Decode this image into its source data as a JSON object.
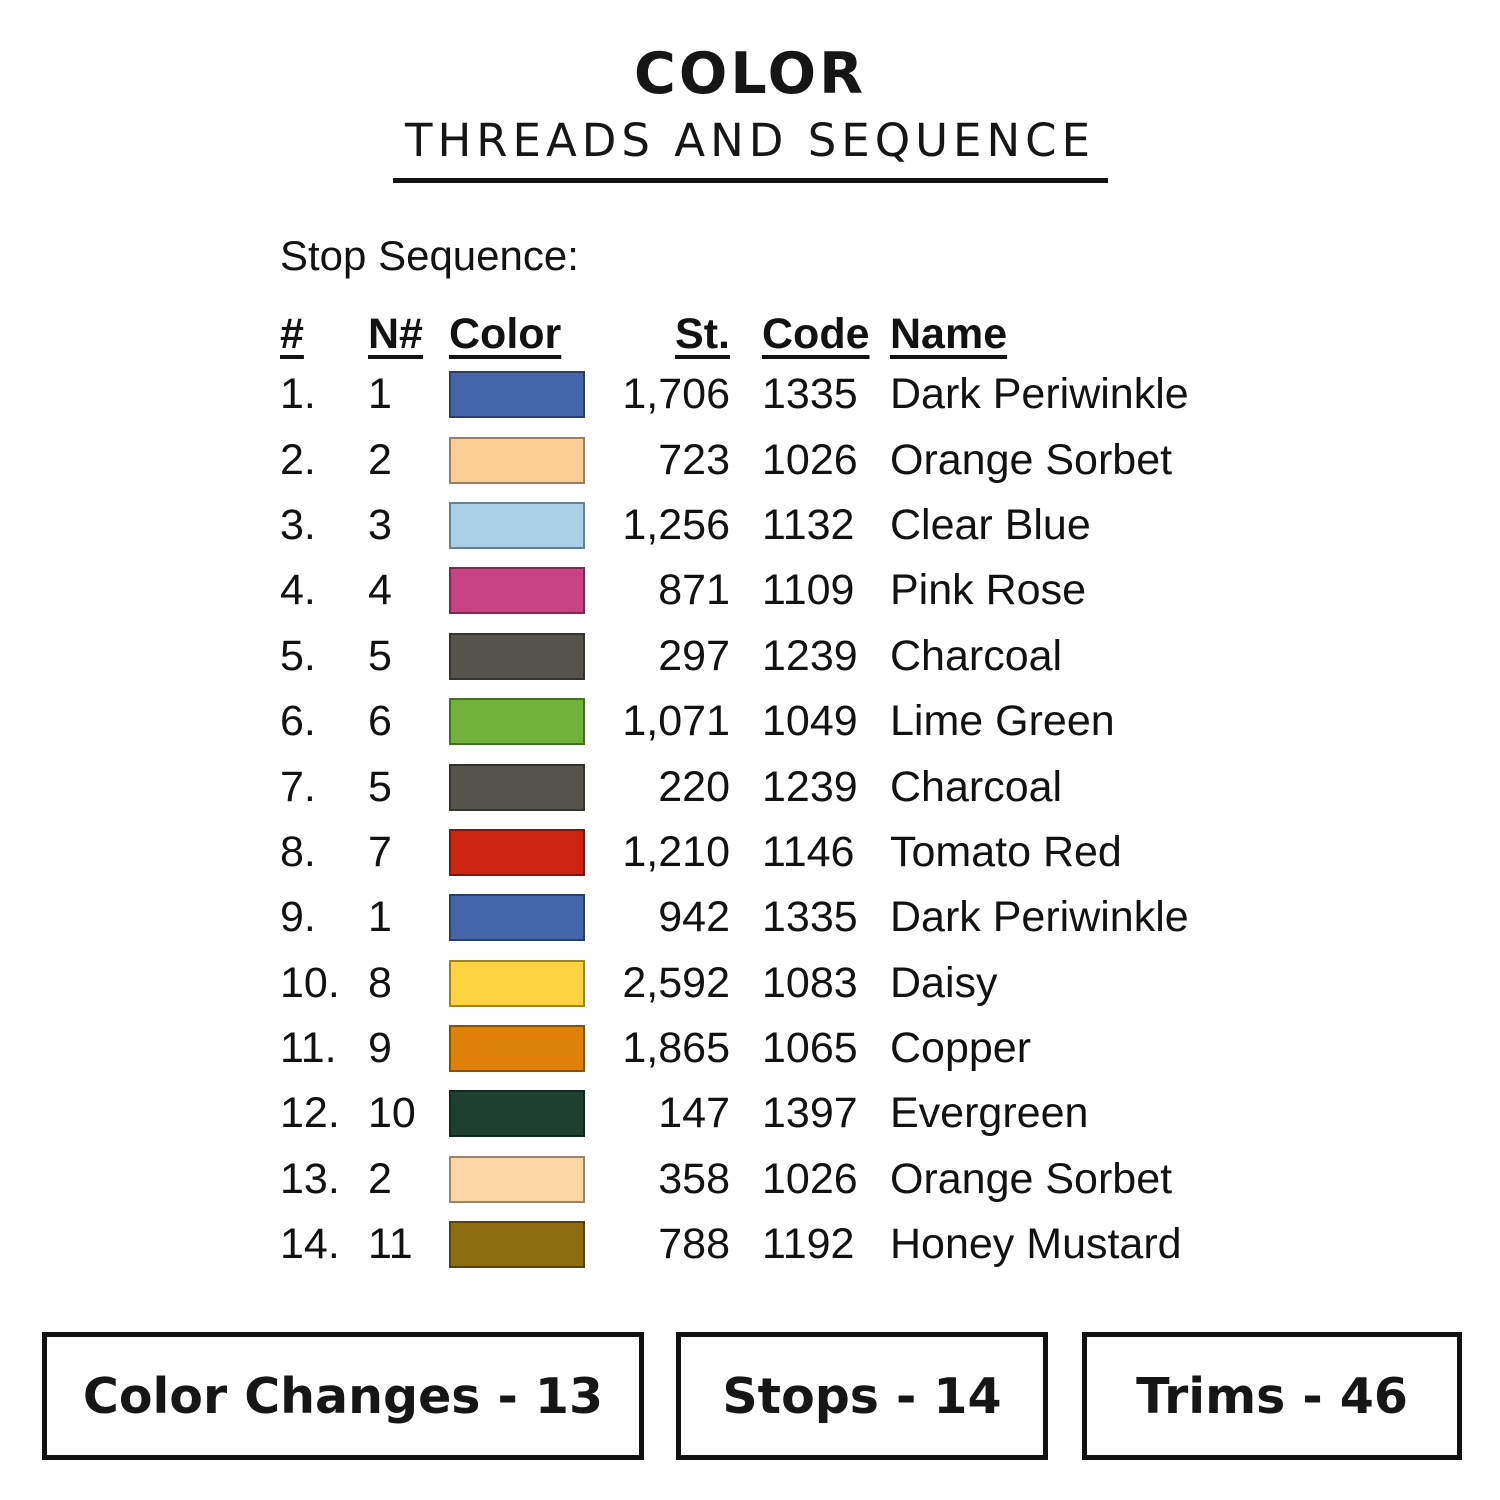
{
  "header": {
    "title": "COLOR",
    "subtitle": "THREADS AND SEQUENCE"
  },
  "stop_sequence": {
    "heading": "Stop Sequence:",
    "columns": {
      "num": "#",
      "needle": "N#",
      "color": "Color",
      "stitches": "St.",
      "code": "Code",
      "name": "Name"
    },
    "rows": [
      {
        "num": "1.",
        "needle": "1",
        "swatch": "#4565AB",
        "st": "1,706",
        "code": "1335",
        "name": "Dark Periwinkle"
      },
      {
        "num": "2.",
        "needle": "2",
        "swatch": "#FBCE96",
        "st": "723",
        "code": "1026",
        "name": "Orange Sorbet"
      },
      {
        "num": "3.",
        "needle": "3",
        "swatch": "#A9CFE6",
        "st": "1,256",
        "code": "1132",
        "name": "Clear Blue"
      },
      {
        "num": "4.",
        "needle": "4",
        "swatch": "#C94384",
        "st": "871",
        "code": "1109",
        "name": "Pink Rose"
      },
      {
        "num": "5.",
        "needle": "5",
        "swatch": "#56524C",
        "st": "297",
        "code": "1239",
        "name": "Charcoal"
      },
      {
        "num": "6.",
        "needle": "6",
        "swatch": "#72B13C",
        "st": "1,071",
        "code": "1049",
        "name": "Lime Green"
      },
      {
        "num": "7.",
        "needle": "5",
        "swatch": "#56524C",
        "st": "220",
        "code": "1239",
        "name": "Charcoal"
      },
      {
        "num": "8.",
        "needle": "7",
        "swatch": "#CC2511",
        "st": "1,210",
        "code": "1146",
        "name": "Tomato Red"
      },
      {
        "num": "9.",
        "needle": "1",
        "swatch": "#4565AB",
        "st": "942",
        "code": "1335",
        "name": "Dark Periwinkle"
      },
      {
        "num": "10.",
        "needle": "8",
        "swatch": "#FDD341",
        "st": "2,592",
        "code": "1083",
        "name": "Daisy"
      },
      {
        "num": "11.",
        "needle": "9",
        "swatch": "#DF8106",
        "st": "1,865",
        "code": "1065",
        "name": "Copper"
      },
      {
        "num": "12.",
        "needle": "10",
        "swatch": "#1D4031",
        "st": "147",
        "code": "1397",
        "name": "Evergreen"
      },
      {
        "num": "13.",
        "needle": "2",
        "swatch": "#FBD6A4",
        "st": "358",
        "code": "1026",
        "name": "Orange Sorbet"
      },
      {
        "num": "14.",
        "needle": "11",
        "swatch": "#8E6D11",
        "st": "788",
        "code": "1192",
        "name": "Honey Mustard"
      }
    ]
  },
  "summary": {
    "color_changes": "Color Changes - 13",
    "stops": "Stops - 14",
    "trims": "Trims - 46"
  }
}
